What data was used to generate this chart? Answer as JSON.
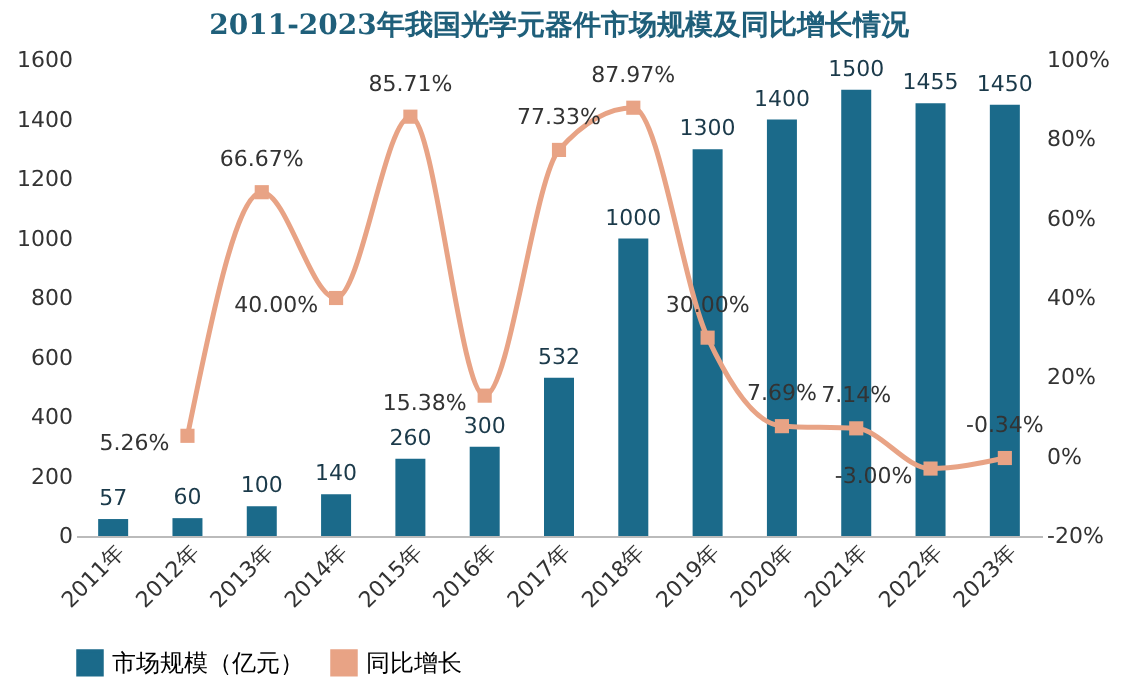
{
  "chart_data": {
    "type": "bar",
    "title": "2011-2023年我国光学元器件市场规模及同比增长情况",
    "categories": [
      "2011年",
      "2012年",
      "2013年",
      "2014年",
      "2015年",
      "2016年",
      "2017年",
      "2018年",
      "2019年",
      "2020年",
      "2021年",
      "2022年",
      "2023年"
    ],
    "series": [
      {
        "name": "市场规模（亿元）",
        "color": "#1b6a8a",
        "values": [
          57,
          60,
          100,
          140,
          260,
          300,
          532,
          1000,
          1300,
          1400,
          1500,
          1455,
          1450
        ],
        "value_labels": [
          "57",
          "60",
          "100",
          "140",
          "260",
          "300",
          "532",
          "1000",
          "1300",
          "1400",
          "1500",
          "1455",
          "1450"
        ]
      },
      {
        "name": "同比增长",
        "type": "line",
        "axis": "y2",
        "color": "#e8a385",
        "marker": "square",
        "values": [
          null,
          5.26,
          66.67,
          40.0,
          85.71,
          15.38,
          77.33,
          87.97,
          30.0,
          7.69,
          7.14,
          -3.0,
          -0.34
        ],
        "value_labels": [
          null,
          "5.26%",
          "66.67%",
          "40.00%",
          "85.71%",
          "15.38%",
          "77.33%",
          "87.97%",
          "30.00%",
          "7.69%",
          "7.14%",
          "-3.00%",
          "-0.34%"
        ]
      }
    ],
    "ylim": [
      0,
      1600
    ],
    "yticks": [
      0,
      200,
      400,
      600,
      800,
      1000,
      1200,
      1400,
      1600
    ],
    "y2lim": [
      -20,
      100
    ],
    "y2ticks": [
      {
        "value": -20,
        "label": "-20%"
      },
      {
        "value": 0,
        "label": "0%"
      },
      {
        "value": 20,
        "label": "20%"
      },
      {
        "value": 40,
        "label": "40%"
      },
      {
        "value": 60,
        "label": "60%"
      },
      {
        "value": 80,
        "label": "80%"
      },
      {
        "value": 100,
        "label": "100%"
      }
    ],
    "legend": "bottom",
    "grid": false
  }
}
